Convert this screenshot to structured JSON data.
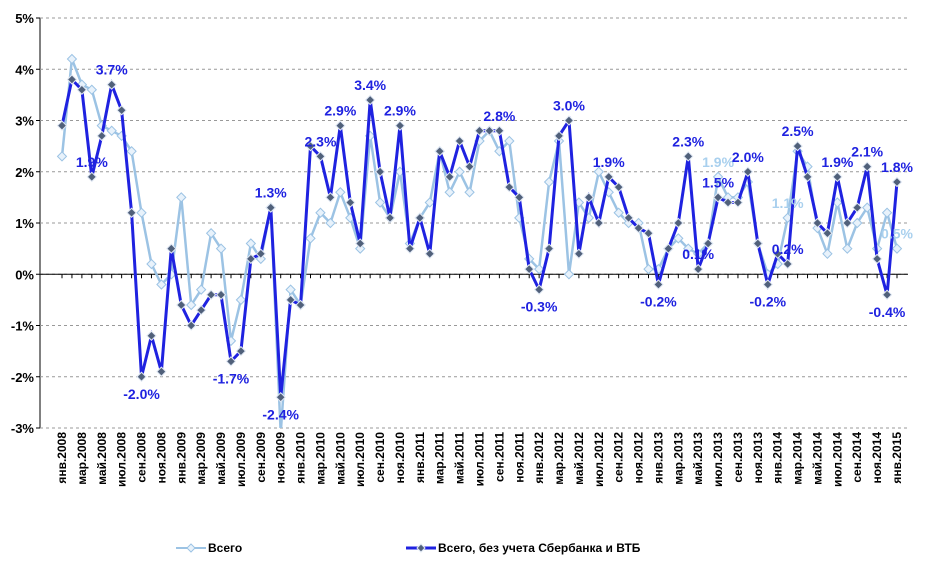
{
  "chart_data": {
    "type": "line",
    "categories": [
      "янв.2008",
      null,
      "мар.2008",
      null,
      "май.2008",
      null,
      "июл.2008",
      null,
      "сен.2008",
      null,
      "ноя.2008",
      null,
      "янв.2009",
      null,
      "мар.2009",
      null,
      "май.2009",
      null,
      "июл.2009",
      null,
      "сен.2009",
      null,
      "ноя.2009",
      null,
      "янв.2010",
      null,
      "мар.2010",
      null,
      "май.2010",
      null,
      "июл.2010",
      null,
      "сен.2010",
      null,
      "ноя.2010",
      null,
      "янв.2011",
      null,
      "мар.2011",
      null,
      "май.2011",
      null,
      "июл.2011",
      null,
      "сен.2011",
      null,
      "ноя.2011",
      null,
      "янв.2012",
      null,
      "мар.2012",
      null,
      "май.2012",
      null,
      "июл.2012",
      null,
      "сен.2012",
      null,
      "ноя.2012",
      null,
      "янв.2013",
      null,
      "мар.2013",
      null,
      "май.2013",
      null,
      "июл.2013",
      null,
      "сен.2013",
      null,
      "ноя.2013",
      null,
      "янв.2014",
      null,
      "мар.2014",
      null,
      "май.2014",
      null,
      "июл.2014",
      null,
      "сен.2014",
      null,
      "ноя.2014",
      null,
      "янв.2015"
    ],
    "series": [
      {
        "name": "Всего",
        "color": "#9cc3e4",
        "label_color": "#a9d0ee",
        "values": [
          2.3,
          4.2,
          3.7,
          3.6,
          2.9,
          2.8,
          2.7,
          2.4,
          1.2,
          0.2,
          -0.2,
          0.0,
          1.5,
          -0.6,
          -0.3,
          0.8,
          0.5,
          -1.3,
          -0.5,
          0.6,
          0.3,
          1.3,
          -3.1,
          -0.3,
          -0.6,
          0.7,
          1.2,
          1.0,
          1.6,
          1.1,
          0.5,
          2.7,
          1.4,
          1.1,
          2.0,
          0.6,
          1.1,
          1.4,
          2.4,
          1.6,
          2.0,
          1.6,
          2.6,
          2.8,
          2.4,
          2.6,
          1.1,
          0.3,
          0.1,
          1.8,
          2.6,
          0.0,
          1.4,
          1.1,
          2.0,
          1.6,
          1.2,
          1.0,
          1.0,
          0.1,
          0.1,
          0.5,
          0.7,
          0.5,
          0.4,
          0.6,
          1.9,
          1.5,
          1.5,
          1.8,
          0.6,
          0.0,
          0.2,
          1.1,
          2.4,
          2.1,
          0.9,
          0.4,
          1.4,
          0.5,
          1.0,
          1.3,
          0.5,
          1.2,
          0.5
        ],
        "value_labels": [
          null,
          null,
          null,
          null,
          null,
          null,
          null,
          null,
          null,
          null,
          null,
          null,
          null,
          null,
          null,
          null,
          null,
          null,
          null,
          null,
          null,
          null,
          null,
          null,
          null,
          null,
          null,
          null,
          null,
          null,
          null,
          null,
          null,
          null,
          null,
          null,
          null,
          null,
          null,
          null,
          null,
          null,
          null,
          null,
          null,
          null,
          null,
          null,
          null,
          null,
          null,
          null,
          null,
          null,
          null,
          null,
          null,
          null,
          null,
          null,
          null,
          null,
          null,
          null,
          null,
          null,
          "1.9%",
          null,
          null,
          null,
          null,
          null,
          null,
          "1.1%",
          null,
          null,
          null,
          null,
          null,
          null,
          null,
          null,
          null,
          null,
          "0.5%"
        ]
      },
      {
        "name": "Всего, без учета Сбербанка и ВТБ",
        "color": "#1f22e0",
        "label_color": "#1f22e0",
        "values": [
          2.9,
          3.8,
          3.6,
          1.9,
          2.7,
          3.7,
          3.2,
          1.2,
          -2.0,
          -1.2,
          -1.9,
          0.5,
          -0.6,
          -1.0,
          -0.7,
          -0.4,
          -0.4,
          -1.7,
          -1.5,
          0.3,
          0.4,
          1.3,
          -2.4,
          -0.5,
          -0.6,
          2.5,
          2.3,
          1.5,
          2.9,
          1.4,
          0.6,
          3.4,
          2.0,
          1.1,
          2.9,
          0.5,
          1.1,
          0.4,
          2.4,
          1.9,
          2.6,
          2.1,
          2.8,
          2.8,
          2.8,
          1.7,
          1.5,
          0.1,
          -0.3,
          0.5,
          2.7,
          3.0,
          0.4,
          1.5,
          1.0,
          1.9,
          1.7,
          1.1,
          0.9,
          0.8,
          -0.2,
          0.5,
          1.0,
          2.3,
          0.1,
          0.6,
          1.5,
          1.4,
          1.4,
          2.0,
          0.6,
          -0.2,
          0.4,
          0.2,
          2.5,
          1.9,
          1.0,
          0.8,
          1.9,
          1.0,
          1.3,
          2.1,
          0.3,
          -0.4,
          1.8
        ],
        "value_labels": [
          null,
          null,
          null,
          "1.9%",
          null,
          "3.7%",
          null,
          null,
          "-2.0%",
          null,
          null,
          null,
          null,
          null,
          null,
          null,
          null,
          "-1.7%",
          null,
          null,
          null,
          "1.3%",
          "-2.4%",
          null,
          null,
          null,
          "2.3%",
          null,
          "2.9%",
          null,
          null,
          "3.4%",
          null,
          null,
          "2.9%",
          null,
          null,
          null,
          null,
          null,
          null,
          null,
          null,
          null,
          "2.8%",
          null,
          null,
          null,
          "-0.3%",
          null,
          null,
          "3.0%",
          null,
          null,
          null,
          "1.9%",
          null,
          null,
          null,
          null,
          "-0.2%",
          null,
          null,
          "2.3%",
          "0.1%",
          null,
          "1.5%",
          null,
          null,
          "2.0%",
          null,
          "-0.2%",
          null,
          "0.2%",
          "2.5%",
          null,
          null,
          null,
          "1.9%",
          null,
          null,
          "2.1%",
          null,
          "-0.4%",
          "1.8%"
        ]
      }
    ],
    "ylim": [
      -3,
      5
    ],
    "yticks": [
      {
        "value": -3,
        "label": "-3%"
      },
      {
        "value": -2,
        "label": "-2%"
      },
      {
        "value": -1,
        "label": "-1%"
      },
      {
        "value": 0,
        "label": "0%"
      },
      {
        "value": 1,
        "label": "1%"
      },
      {
        "value": 2,
        "label": "2%"
      },
      {
        "value": 3,
        "label": "3%"
      },
      {
        "value": 4,
        "label": "4%"
      },
      {
        "value": 5,
        "label": "5%"
      }
    ],
    "grid": true
  }
}
